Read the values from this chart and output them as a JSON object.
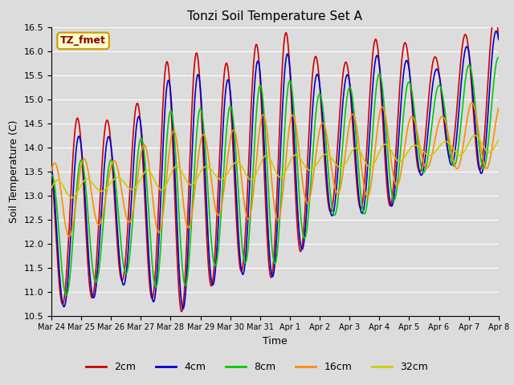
{
  "title": "Tonzi Soil Temperature Set A",
  "xlabel": "Time",
  "ylabel": "Soil Temperature (C)",
  "ylim": [
    10.5,
    16.5
  ],
  "series_colors": {
    "2cm": "#CC0000",
    "4cm": "#0000CC",
    "8cm": "#00CC00",
    "16cm": "#FF8C00",
    "32cm": "#CCCC00"
  },
  "series_labels": [
    "2cm",
    "4cm",
    "8cm",
    "16cm",
    "32cm"
  ],
  "xtick_labels": [
    "Mar 24",
    "Mar 25",
    "Mar 26",
    "Mar 27",
    "Mar 28",
    "Mar 29",
    "Mar 30",
    "Mar 31",
    "Apr 1",
    "Apr 2",
    "Apr 3",
    "Apr 4",
    "Apr 5",
    "Apr 6",
    "Apr 7",
    "Apr 8"
  ],
  "legend_label": "TZ_fmet",
  "background_color": "#DCDCDC",
  "plot_bg_color": "#DCDCDC",
  "grid_color": "#FFFFFF",
  "linewidth": 1.2,
  "yticks": [
    10.5,
    11.0,
    11.5,
    12.0,
    12.5,
    13.0,
    13.5,
    14.0,
    14.5,
    15.0,
    15.5,
    16.0,
    16.5
  ]
}
